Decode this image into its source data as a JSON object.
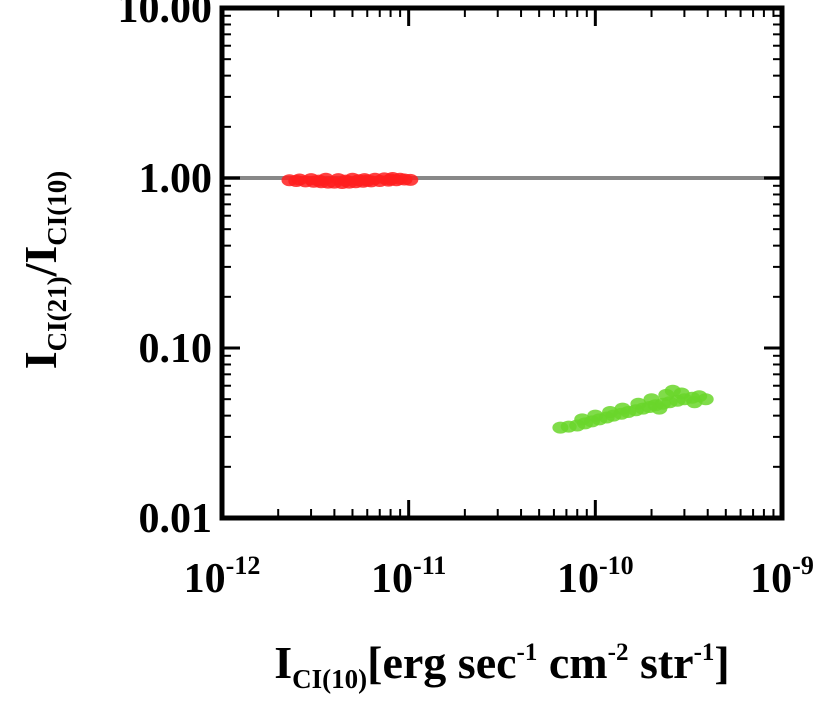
{
  "chart_data": {
    "type": "scatter",
    "title": "",
    "xscale": "log",
    "yscale": "log",
    "xlim": [
      1e-12,
      1e-09
    ],
    "ylim": [
      0.01,
      10
    ],
    "grid": false,
    "x_ticks": [
      {
        "value": 1e-12,
        "base": "10",
        "exp": "-12"
      },
      {
        "value": 1e-11,
        "base": "10",
        "exp": "-11"
      },
      {
        "value": 1e-10,
        "base": "10",
        "exp": "-10"
      },
      {
        "value": 1e-09,
        "base": "10",
        "exp": "-9"
      }
    ],
    "y_ticks": [
      {
        "value": 0.01,
        "label": "0.01"
      },
      {
        "value": 0.1,
        "label": "0.10"
      },
      {
        "value": 1,
        "label": "1.00"
      },
      {
        "value": 10,
        "label": "10.00"
      }
    ],
    "xlabel": {
      "main": "I",
      "sub": "CI(10)",
      "units": [
        {
          "text": "[erg sec",
          "sup": "-1"
        },
        {
          "text": " cm",
          "sup": "-2"
        },
        {
          "text": " str",
          "sup": "-1"
        },
        {
          "text": "]",
          "sup": ""
        }
      ]
    },
    "ylabel": {
      "num": "I",
      "num_sub": "CI(21)",
      "slash": "/",
      "den": "I",
      "den_sub": "CI(10)"
    },
    "reference_line": {
      "y": 1.0,
      "color": "#888888"
    },
    "series": [
      {
        "color": "#ff1f1f",
        "points": [
          [
            2.3e-12,
            0.97
          ],
          [
            2.5e-12,
            0.96
          ],
          [
            2.8e-12,
            0.955
          ],
          [
            3.1e-12,
            0.95
          ],
          [
            3.4e-12,
            0.945
          ],
          [
            3.7e-12,
            0.94
          ],
          [
            4e-12,
            0.94
          ],
          [
            4.4e-12,
            0.935
          ],
          [
            4.8e-12,
            0.94
          ],
          [
            5.2e-12,
            0.945
          ],
          [
            5.7e-12,
            0.95
          ],
          [
            6.3e-12,
            0.955
          ],
          [
            7e-12,
            0.96
          ],
          [
            7.8e-12,
            0.965
          ],
          [
            8.6e-12,
            0.97
          ],
          [
            9.5e-12,
            0.98
          ],
          [
            1.02e-11,
            0.975
          ],
          [
            3e-12,
            0.985
          ],
          [
            3.6e-12,
            0.99
          ],
          [
            4.2e-12,
            0.985
          ],
          [
            5e-12,
            0.99
          ],
          [
            5.8e-12,
            0.985
          ],
          [
            6.6e-12,
            0.99
          ],
          [
            7.4e-12,
            0.995
          ],
          [
            8.2e-12,
            1.0
          ],
          [
            9e-12,
            0.99
          ],
          [
            4.6e-12,
            0.965
          ],
          [
            5.4e-12,
            0.97
          ],
          [
            6e-12,
            0.965
          ],
          [
            3.3e-12,
            0.965
          ],
          [
            2.6e-12,
            0.98
          ],
          [
            8e-12,
            0.98
          ]
        ]
      },
      {
        "color": "#6ad62a",
        "points": [
          [
            6.5e-11,
            0.034
          ],
          [
            7.2e-11,
            0.0345
          ],
          [
            8e-11,
            0.035
          ],
          [
            8.8e-11,
            0.036
          ],
          [
            9.6e-11,
            0.037
          ],
          [
            1.05e-10,
            0.038
          ],
          [
            1.15e-10,
            0.039
          ],
          [
            1.25e-10,
            0.04
          ],
          [
            1.38e-10,
            0.041
          ],
          [
            1.5e-10,
            0.042
          ],
          [
            1.65e-10,
            0.043
          ],
          [
            1.8e-10,
            0.044
          ],
          [
            1.95e-10,
            0.045
          ],
          [
            2.1e-10,
            0.046
          ],
          [
            2.3e-10,
            0.047
          ],
          [
            2.5e-10,
            0.048
          ],
          [
            2.75e-10,
            0.049
          ],
          [
            3e-10,
            0.05
          ],
          [
            3.3e-10,
            0.051
          ],
          [
            3.6e-10,
            0.052
          ],
          [
            3.9e-10,
            0.05
          ],
          [
            2.6e-10,
            0.056
          ],
          [
            2.4e-10,
            0.053
          ],
          [
            2e-10,
            0.05
          ],
          [
            1.7e-10,
            0.047
          ],
          [
            1.4e-10,
            0.044
          ],
          [
            1.2e-10,
            0.042
          ],
          [
            1e-10,
            0.04
          ],
          [
            8.5e-11,
            0.038
          ],
          [
            2.9e-10,
            0.054
          ],
          [
            3.4e-10,
            0.048
          ],
          [
            2.2e-10,
            0.044
          ]
        ]
      }
    ]
  }
}
